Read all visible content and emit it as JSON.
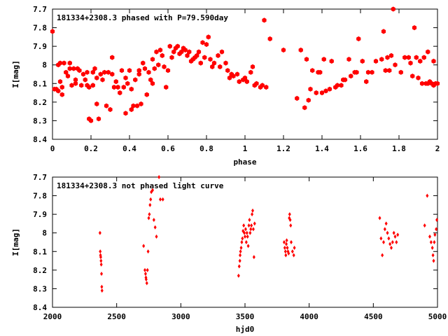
{
  "chart_data": [
    {
      "type": "scatter",
      "title": "181334+2308.3 phased with P=79.590day",
      "xlabel": "phase",
      "ylabel": "I[mag]",
      "xlim": [
        0,
        2
      ],
      "ylim": [
        8.4,
        7.7
      ],
      "y_inverted": true,
      "xticks": [
        0,
        0.2,
        0.4,
        0.6,
        0.8,
        1,
        1.2,
        1.4,
        1.6,
        1.8,
        2
      ],
      "xtick_labels": [
        "0",
        "0.2",
        "0.4",
        "0.6",
        "0.8",
        "1",
        "1.2",
        "1.4",
        "1.6",
        "1.8",
        "2"
      ],
      "yticks": [
        7.7,
        7.8,
        7.9,
        8,
        8.1,
        8.2,
        8.3,
        8.4
      ],
      "ytick_labels": [
        "7.7",
        "7.8",
        "7.9",
        "8",
        "8.1",
        "8.2",
        "8.3",
        "8.4"
      ],
      "marker": "filled-hexagon",
      "color": "#ff0000",
      "points": [
        [
          0.0,
          7.82
        ],
        [
          0.01,
          8.13
        ],
        [
          0.02,
          8.13
        ],
        [
          0.03,
          8.14
        ],
        [
          0.03,
          8.0
        ],
        [
          0.04,
          7.99
        ],
        [
          0.04,
          8.09
        ],
        [
          0.05,
          8.12
        ],
        [
          0.05,
          8.16
        ],
        [
          0.06,
          7.99
        ],
        [
          0.07,
          8.04
        ],
        [
          0.08,
          8.06
        ],
        [
          0.09,
          8.02
        ],
        [
          0.09,
          7.99
        ],
        [
          0.1,
          8.11
        ],
        [
          0.11,
          8.02
        ],
        [
          0.12,
          8.08
        ],
        [
          0.12,
          8.1
        ],
        [
          0.13,
          8.02
        ],
        [
          0.14,
          8.03
        ],
        [
          0.15,
          8.11
        ],
        [
          0.16,
          8.05
        ],
        [
          0.17,
          8.08
        ],
        [
          0.18,
          8.11
        ],
        [
          0.18,
          8.04
        ],
        [
          0.19,
          8.29
        ],
        [
          0.19,
          8.12
        ],
        [
          0.2,
          8.3
        ],
        [
          0.21,
          8.04
        ],
        [
          0.21,
          8.11
        ],
        [
          0.22,
          8.02
        ],
        [
          0.23,
          8.21
        ],
        [
          0.23,
          8.07
        ],
        [
          0.24,
          8.29
        ],
        [
          0.25,
          8.05
        ],
        [
          0.26,
          8.08
        ],
        [
          0.27,
          8.04
        ],
        [
          0.28,
          8.22
        ],
        [
          0.29,
          8.04
        ],
        [
          0.3,
          8.24
        ],
        [
          0.31,
          8.05
        ],
        [
          0.31,
          7.96
        ],
        [
          0.32,
          8.12
        ],
        [
          0.33,
          8.09
        ],
        [
          0.34,
          8.12
        ],
        [
          0.35,
          8.15
        ],
        [
          0.36,
          8.03
        ],
        [
          0.37,
          8.12
        ],
        [
          0.38,
          8.26
        ],
        [
          0.38,
          8.07
        ],
        [
          0.39,
          8.1
        ],
        [
          0.4,
          8.03
        ],
        [
          0.41,
          8.13
        ],
        [
          0.41,
          8.24
        ],
        [
          0.42,
          8.22
        ],
        [
          0.43,
          8.08
        ],
        [
          0.44,
          8.22
        ],
        [
          0.45,
          8.05
        ],
        [
          0.45,
          8.03
        ],
        [
          0.46,
          8.21
        ],
        [
          0.47,
          7.99
        ],
        [
          0.48,
          8.02
        ],
        [
          0.49,
          8.16
        ],
        [
          0.5,
          8.04
        ],
        [
          0.51,
          8.08
        ],
        [
          0.52,
          8.1
        ],
        [
          0.52,
          7.97
        ],
        [
          0.53,
          8.02
        ],
        [
          0.54,
          7.93
        ],
        [
          0.55,
          8.0
        ],
        [
          0.56,
          7.92
        ],
        [
          0.57,
          7.95
        ],
        [
          0.58,
          8.01
        ],
        [
          0.59,
          8.12
        ],
        [
          0.6,
          8.03
        ],
        [
          0.61,
          7.9
        ],
        [
          0.62,
          7.96
        ],
        [
          0.63,
          7.93
        ],
        [
          0.64,
          7.91
        ],
        [
          0.65,
          7.9
        ],
        [
          0.66,
          7.94
        ],
        [
          0.67,
          7.93
        ],
        [
          0.68,
          7.91
        ],
        [
          0.69,
          7.92
        ],
        [
          0.7,
          7.95
        ],
        [
          0.71,
          7.93
        ],
        [
          0.72,
          7.98
        ],
        [
          0.73,
          7.97
        ],
        [
          0.74,
          7.96
        ],
        [
          0.75,
          7.95
        ],
        [
          0.76,
          7.93
        ],
        [
          0.77,
          7.99
        ],
        [
          0.78,
          7.88
        ],
        [
          0.79,
          7.96
        ],
        [
          0.8,
          7.89
        ],
        [
          0.81,
          7.85
        ],
        [
          0.82,
          7.97
        ],
        [
          0.83,
          8.01
        ],
        [
          0.84,
          7.99
        ],
        [
          0.86,
          7.95
        ],
        [
          0.87,
          8.01
        ],
        [
          0.88,
          7.93
        ],
        [
          0.9,
          7.99
        ],
        [
          0.91,
          8.03
        ],
        [
          0.92,
          8.07
        ],
        [
          0.93,
          8.05
        ],
        [
          0.94,
          8.06
        ],
        [
          0.96,
          8.05
        ],
        [
          0.97,
          8.09
        ],
        [
          0.99,
          8.08
        ],
        [
          1.0,
          8.07
        ],
        [
          1.01,
          8.09
        ],
        [
          1.03,
          8.04
        ],
        [
          1.04,
          8.01
        ],
        [
          1.05,
          8.11
        ],
        [
          1.06,
          8.1
        ],
        [
          1.08,
          8.12
        ],
        [
          1.09,
          8.11
        ],
        [
          1.1,
          7.76
        ],
        [
          1.11,
          8.12
        ],
        [
          1.13,
          7.86
        ],
        [
          1.2,
          7.92
        ],
        [
          1.27,
          8.18
        ],
        [
          1.29,
          7.92
        ],
        [
          1.31,
          8.23
        ],
        [
          1.32,
          7.97
        ],
        [
          1.33,
          8.19
        ],
        [
          1.34,
          8.13
        ],
        [
          1.35,
          8.03
        ],
        [
          1.37,
          8.15
        ],
        [
          1.38,
          8.04
        ],
        [
          1.39,
          8.04
        ],
        [
          1.4,
          8.15
        ],
        [
          1.41,
          7.97
        ],
        [
          1.42,
          8.14
        ],
        [
          1.44,
          8.13
        ],
        [
          1.45,
          7.98
        ],
        [
          1.47,
          8.12
        ],
        [
          1.48,
          8.11
        ],
        [
          1.5,
          8.11
        ],
        [
          1.51,
          8.08
        ],
        [
          1.52,
          8.08
        ],
        [
          1.54,
          7.97
        ],
        [
          1.55,
          8.06
        ],
        [
          1.57,
          8.04
        ],
        [
          1.58,
          8.04
        ],
        [
          1.59,
          7.86
        ],
        [
          1.61,
          7.98
        ],
        [
          1.63,
          8.09
        ],
        [
          1.64,
          8.04
        ],
        [
          1.66,
          8.04
        ],
        [
          1.68,
          7.98
        ],
        [
          1.71,
          7.97
        ],
        [
          1.72,
          7.82
        ],
        [
          1.73,
          8.03
        ],
        [
          1.74,
          7.96
        ],
        [
          1.75,
          8.03
        ],
        [
          1.76,
          7.95
        ],
        [
          1.77,
          7.7
        ],
        [
          1.78,
          8.0
        ],
        [
          1.81,
          8.04
        ],
        [
          1.83,
          7.96
        ],
        [
          1.85,
          7.96
        ],
        [
          1.86,
          7.99
        ],
        [
          1.87,
          8.06
        ],
        [
          1.88,
          7.8
        ],
        [
          1.89,
          7.96
        ],
        [
          1.9,
          8.07
        ],
        [
          1.91,
          7.98
        ],
        [
          1.92,
          8.1
        ],
        [
          1.93,
          7.96
        ],
        [
          1.94,
          8.1
        ],
        [
          1.95,
          8.1
        ],
        [
          1.95,
          7.93
        ],
        [
          1.96,
          8.09
        ],
        [
          1.97,
          8.1
        ],
        [
          1.98,
          8.11
        ],
        [
          1.98,
          7.98
        ],
        [
          1.99,
          8.1
        ],
        [
          2.0,
          8.1
        ]
      ]
    },
    {
      "type": "scatter",
      "title": "181334+2308.3 not phased light curve",
      "xlabel": "hjd0",
      "ylabel": "I[mag]",
      "xlim": [
        2000,
        5000
      ],
      "ylim": [
        8.4,
        7.7
      ],
      "y_inverted": true,
      "xticks": [
        2000,
        2500,
        3000,
        3500,
        4000,
        4500,
        5000
      ],
      "xtick_labels": [
        "2000",
        "2500",
        "3000",
        "3500",
        "4000",
        "4500",
        "5000"
      ],
      "yticks": [
        7.7,
        7.8,
        7.9,
        8,
        8.1,
        8.2,
        8.3,
        8.4
      ],
      "ytick_labels": [
        "7.7",
        "7.8",
        "7.9",
        "8",
        "8.1",
        "8.2",
        "8.3",
        "8.4"
      ],
      "marker": "small-diamond",
      "color": "#ff0000",
      "points": [
        [
          2370,
          8.0
        ],
        [
          2372,
          8.1
        ],
        [
          2374,
          8.12
        ],
        [
          2376,
          8.13
        ],
        [
          2378,
          8.15
        ],
        [
          2380,
          8.17
        ],
        [
          2382,
          8.22
        ],
        [
          2384,
          8.29
        ],
        [
          2386,
          8.31
        ],
        [
          2710,
          8.07
        ],
        [
          2720,
          8.2
        ],
        [
          2725,
          8.22
        ],
        [
          2728,
          8.24
        ],
        [
          2730,
          8.25
        ],
        [
          2735,
          8.27
        ],
        [
          2740,
          8.2
        ],
        [
          2745,
          8.1
        ],
        [
          2750,
          7.92
        ],
        [
          2755,
          7.9
        ],
        [
          2760,
          7.85
        ],
        [
          2765,
          7.82
        ],
        [
          2770,
          7.78
        ],
        [
          2780,
          7.77
        ],
        [
          2790,
          7.93
        ],
        [
          2800,
          7.97
        ],
        [
          2810,
          8.02
        ],
        [
          2830,
          7.7
        ],
        [
          2840,
          7.82
        ],
        [
          2860,
          7.82
        ],
        [
          3450,
          8.23
        ],
        [
          3455,
          8.18
        ],
        [
          3460,
          8.15
        ],
        [
          3462,
          8.12
        ],
        [
          3465,
          8.1
        ],
        [
          3470,
          8.08
        ],
        [
          3475,
          8.05
        ],
        [
          3480,
          8.03
        ],
        [
          3485,
          7.99
        ],
        [
          3490,
          7.96
        ],
        [
          3495,
          8.0
        ],
        [
          3500,
          8.02
        ],
        [
          3505,
          7.98
        ],
        [
          3510,
          8.05
        ],
        [
          3515,
          8.0
        ],
        [
          3520,
          8.02
        ],
        [
          3525,
          8.07
        ],
        [
          3530,
          7.96
        ],
        [
          3535,
          7.93
        ],
        [
          3540,
          8.0
        ],
        [
          3545,
          7.98
        ],
        [
          3550,
          7.96
        ],
        [
          3555,
          7.9
        ],
        [
          3560,
          7.88
        ],
        [
          3565,
          7.98
        ],
        [
          3570,
          8.13
        ],
        [
          3575,
          7.95
        ],
        [
          3805,
          8.05
        ],
        [
          3810,
          8.08
        ],
        [
          3815,
          8.1
        ],
        [
          3818,
          8.12
        ],
        [
          3822,
          8.06
        ],
        [
          3825,
          8.04
        ],
        [
          3830,
          8.08
        ],
        [
          3835,
          8.1
        ],
        [
          3840,
          8.11
        ],
        [
          3845,
          7.92
        ],
        [
          3848,
          7.9
        ],
        [
          3852,
          7.93
        ],
        [
          3856,
          7.96
        ],
        [
          3860,
          8.05
        ],
        [
          3870,
          8.1
        ],
        [
          3880,
          8.12
        ],
        [
          3885,
          8.08
        ],
        [
          4550,
          7.92
        ],
        [
          4560,
          8.03
        ],
        [
          4570,
          8.12
        ],
        [
          4580,
          8.05
        ],
        [
          4590,
          7.98
        ],
        [
          4600,
          7.95
        ],
        [
          4610,
          8.0
        ],
        [
          4620,
          8.03
        ],
        [
          4630,
          8.06
        ],
        [
          4640,
          8.08
        ],
        [
          4650,
          8.05
        ],
        [
          4660,
          8.0
        ],
        [
          4670,
          8.02
        ],
        [
          4680,
          8.05
        ],
        [
          4690,
          8.01
        ],
        [
          4900,
          7.96
        ],
        [
          4920,
          7.8
        ],
        [
          4940,
          8.02
        ],
        [
          4950,
          8.05
        ],
        [
          4960,
          8.08
        ],
        [
          4965,
          8.12
        ],
        [
          4970,
          8.15
        ],
        [
          4975,
          8.05
        ],
        [
          4980,
          8.01
        ],
        [
          4990,
          7.98
        ],
        [
          4995,
          7.93
        ]
      ]
    }
  ]
}
